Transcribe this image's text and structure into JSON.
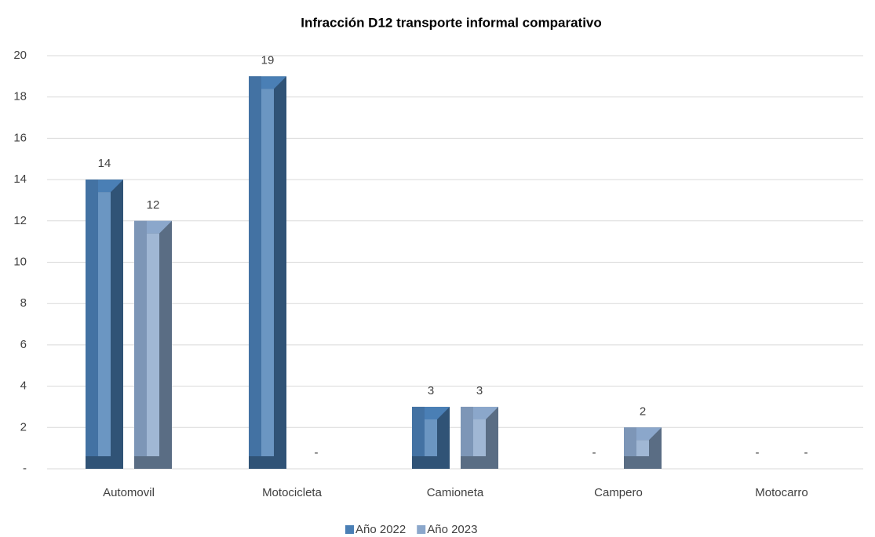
{
  "chart_data": {
    "type": "bar",
    "title": "Infracción D12 transporte informal comparativo",
    "categories": [
      "Automovil",
      "Motocicleta",
      "Camioneta",
      "Campero",
      "Motocarro"
    ],
    "series": [
      {
        "name": "Año 2022",
        "color": "#4a7fb5",
        "values": [
          14,
          19,
          3,
          0,
          0
        ],
        "value_labels": [
          "14",
          "19",
          "3",
          "-",
          "-"
        ]
      },
      {
        "name": "Año 2023",
        "color": "#8ba7cb",
        "values": [
          12,
          0,
          3,
          2,
          0
        ],
        "value_labels": [
          "12",
          "-",
          "3",
          "2",
          "-"
        ]
      }
    ],
    "ylim": [
      0,
      20
    ],
    "yticks": [
      {
        "value": 0,
        "label": "-"
      },
      2,
      4,
      6,
      8,
      10,
      12,
      14,
      16,
      18,
      20
    ],
    "grid": true,
    "legend": "bottom"
  }
}
